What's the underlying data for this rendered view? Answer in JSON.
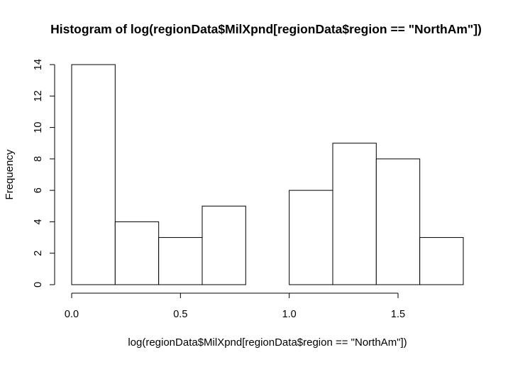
{
  "chart_data": {
    "type": "bar",
    "title": "Histogram of log(regionData$MilXpnd[regionData$region == \"NorthAm\"])",
    "xlabel": "log(regionData$MilXpnd[regionData$region == \"NorthAm\"])",
    "ylabel": "Frequency",
    "bins": [
      {
        "start": 0.0,
        "end": 0.2,
        "count": 14
      },
      {
        "start": 0.2,
        "end": 0.4,
        "count": 4
      },
      {
        "start": 0.4,
        "end": 0.6,
        "count": 3
      },
      {
        "start": 0.6,
        "end": 0.8,
        "count": 5
      },
      {
        "start": 0.8,
        "end": 1.0,
        "count": 0
      },
      {
        "start": 1.0,
        "end": 1.2,
        "count": 6
      },
      {
        "start": 1.2,
        "end": 1.4,
        "count": 9
      },
      {
        "start": 1.4,
        "end": 1.6,
        "count": 8
      },
      {
        "start": 1.6,
        "end": 1.8,
        "count": 3
      }
    ],
    "xlim": [
      0.0,
      1.8
    ],
    "ylim": [
      0,
      14
    ],
    "xticks": [
      "0.0",
      "0.5",
      "1.0",
      "1.5"
    ],
    "xtick_values": [
      0.0,
      0.5,
      1.0,
      1.5
    ],
    "yticks": [
      "0",
      "2",
      "4",
      "6",
      "8",
      "10",
      "12",
      "14"
    ],
    "ytick_values": [
      0,
      2,
      4,
      6,
      8,
      10,
      12,
      14
    ],
    "grid": false,
    "legend": false,
    "colors": {
      "bar_fill": "#ffffff",
      "bar_stroke": "#000000"
    }
  }
}
